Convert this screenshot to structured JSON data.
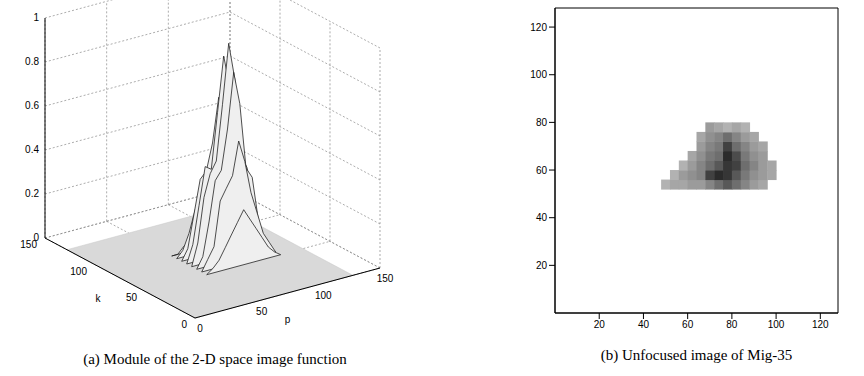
{
  "chart_data": [
    {
      "type": "surface",
      "title": "(a) Module of the 2-D space image function",
      "x_label": "p",
      "y_label": "k",
      "xlim": [
        0,
        150
      ],
      "xticks": [
        0,
        50,
        100,
        150
      ],
      "ylim": [
        0,
        150
      ],
      "yticks": [
        0,
        50,
        100,
        150
      ],
      "zlim": [
        0,
        1
      ],
      "zticks": [
        0,
        0.2,
        0.4,
        0.6,
        0.8,
        1
      ],
      "grid": true,
      "extent": [
        0,
        128
      ],
      "p": [
        50,
        55,
        60,
        65,
        70,
        75,
        80,
        85,
        90,
        95,
        100,
        105,
        110
      ],
      "k": [
        50,
        55,
        60,
        65,
        70,
        75,
        80,
        85
      ],
      "z": [
        [
          0,
          0.02,
          0.05,
          0.1,
          0.15,
          0.2,
          0.25,
          0.2,
          0.15,
          0.1,
          0.05,
          0.02,
          0
        ],
        [
          0,
          0.05,
          0.1,
          0.3,
          0.35,
          0.4,
          0.55,
          0.45,
          0.3,
          0.2,
          0.1,
          0.05,
          0
        ],
        [
          0,
          0.05,
          0.2,
          0.38,
          0.42,
          0.6,
          0.85,
          0.7,
          0.4,
          0.35,
          0.15,
          0.05,
          0
        ],
        [
          0,
          0.1,
          0.3,
          0.4,
          0.45,
          0.7,
          0.97,
          0.8,
          0.45,
          0.38,
          0.2,
          0.05,
          0
        ],
        [
          0,
          0.08,
          0.25,
          0.42,
          0.4,
          0.65,
          0.9,
          0.75,
          0.42,
          0.35,
          0.18,
          0.05,
          0
        ],
        [
          0,
          0.05,
          0.2,
          0.35,
          0.38,
          0.5,
          0.7,
          0.55,
          0.38,
          0.3,
          0.12,
          0.03,
          0
        ],
        [
          0,
          0.03,
          0.1,
          0.2,
          0.25,
          0.3,
          0.4,
          0.35,
          0.25,
          0.15,
          0.08,
          0.02,
          0
        ],
        [
          0,
          0,
          0.03,
          0.05,
          0.08,
          0.1,
          0.15,
          0.12,
          0.08,
          0.05,
          0.02,
          0,
          0
        ]
      ]
    },
    {
      "type": "heatmap",
      "title": "(b) Unfocused image of Mig-35",
      "xlim": [
        0,
        128
      ],
      "xticks": [
        20,
        40,
        60,
        80,
        100,
        120
      ],
      "ylim": [
        0,
        128
      ],
      "yticks": [
        20,
        40,
        60,
        80,
        100,
        120
      ],
      "x0": 48,
      "y0": 52,
      "cell": 4,
      "cells": [
        [
          0.3,
          0.35,
          0.35,
          0.4,
          0.4,
          0.5,
          0.6,
          0.7,
          0.6,
          0.5,
          0.4,
          0.35,
          0
        ],
        [
          0,
          0.3,
          0.4,
          0.45,
          0.5,
          0.8,
          0.9,
          0.85,
          0.7,
          0.55,
          0.45,
          0.4,
          0.35
        ],
        [
          0,
          0,
          0.3,
          0.4,
          0.5,
          0.6,
          0.7,
          0.85,
          0.8,
          0.6,
          0.5,
          0.4,
          0.35
        ],
        [
          0,
          0,
          0,
          0.35,
          0.45,
          0.55,
          0.6,
          0.9,
          0.75,
          0.55,
          0.45,
          0.4,
          0
        ],
        [
          0,
          0,
          0,
          0,
          0.4,
          0.5,
          0.55,
          0.8,
          0.6,
          0.5,
          0.4,
          0.35,
          0
        ],
        [
          0,
          0,
          0,
          0,
          0.35,
          0.45,
          0.5,
          0.6,
          0.5,
          0.4,
          0.35,
          0,
          0
        ],
        [
          0,
          0,
          0,
          0,
          0,
          0.4,
          0.35,
          0.3,
          0.35,
          0.3,
          0,
          0,
          0
        ]
      ]
    }
  ]
}
